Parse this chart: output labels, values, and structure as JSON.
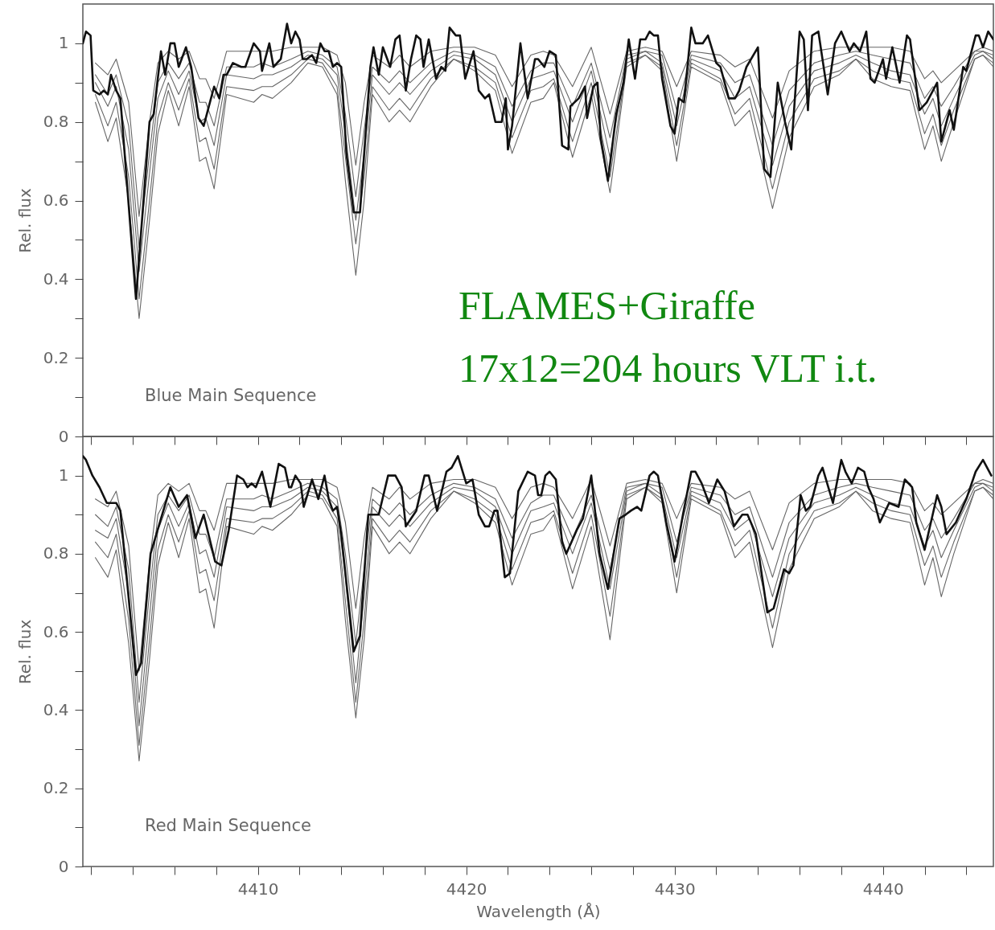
{
  "chart_data": [
    {
      "type": "line",
      "ylabel": "Rel. flux",
      "annotations": [
        "Blue Main Sequence",
        "FLAMES+Giraffe",
        "17x12=204 hours VLT i.t."
      ],
      "tick_labels": "y",
      "xlim": [
        4401.6,
        4445.3
      ],
      "ylim": [
        0,
        1.1
      ],
      "xticks": [
        {
          "value": 4402,
          "label": null
        },
        {
          "value": 4404,
          "label": null
        },
        {
          "value": 4406,
          "label": null
        },
        {
          "value": 4408,
          "label": null
        },
        {
          "value": 4410,
          "label": null
        },
        {
          "value": 4412,
          "label": null
        },
        {
          "value": 4414,
          "label": null
        },
        {
          "value": 4416,
          "label": null
        },
        {
          "value": 4418,
          "label": null
        },
        {
          "value": 4420,
          "label": null
        },
        {
          "value": 4422,
          "label": null
        },
        {
          "value": 4424,
          "label": null
        },
        {
          "value": 4426,
          "label": null
        },
        {
          "value": 4428,
          "label": null
        },
        {
          "value": 4430,
          "label": null
        },
        {
          "value": 4432,
          "label": null
        },
        {
          "value": 4434,
          "label": null
        },
        {
          "value": 4436,
          "label": null
        },
        {
          "value": 4438,
          "label": null
        },
        {
          "value": 4440,
          "label": null
        },
        {
          "value": 4442,
          "label": null
        },
        {
          "value": 4444,
          "label": null
        }
      ],
      "yticks": [
        0,
        {
          "value": 0.1,
          "label": null
        },
        0.2,
        {
          "value": 0.3,
          "label": null
        },
        0.4,
        {
          "value": 0.5,
          "label": null
        },
        0.6,
        {
          "value": 0.7,
          "label": null
        },
        0.8,
        {
          "value": 0.9,
          "label": null
        },
        1
      ],
      "x": [
        4402.2,
        4402.8,
        4403.2,
        4403.8,
        4404.3,
        4404.8,
        4405.2,
        4405.7,
        4406.2,
        4406.7,
        4407.2,
        4407.5,
        4407.9,
        4408.5,
        4409.8,
        4410.2,
        4410.7,
        4411.6,
        4412.4,
        4413.1,
        4413.8,
        4414.2,
        4414.7,
        4415.1,
        4415.5,
        4416.3,
        4416.8,
        4417.3,
        4418.3,
        4419.4,
        4420.4,
        4421.4,
        4422.2,
        4423.1,
        4423.7,
        4424.2,
        4425.1,
        4426.0,
        4426.9,
        4427.7,
        4428.6,
        4429.4,
        4430.1,
        4430.8,
        4432.2,
        4432.9,
        4433.6,
        4434.7,
        4435.5,
        4436.7,
        4437.9,
        4438.7,
        4439.5,
        4440.4,
        4441.3,
        4442.0,
        4442.4,
        4442.8,
        4443.4,
        4444.4,
        4444.8,
        4445.3
      ],
      "series": [
        {
          "color": "#666666",
          "values": [
            0.95,
            0.92,
            0.96,
            0.85,
            0.56,
            0.8,
            0.95,
            0.98,
            0.96,
            0.98,
            0.91,
            0.91,
            0.86,
            0.98,
            0.98,
            0.98,
            0.98,
            0.99,
            0.99,
            0.99,
            0.97,
            0.9,
            0.69,
            0.85,
            0.97,
            0.94,
            0.97,
            0.94,
            0.98,
            0.99,
            0.99,
            0.97,
            0.89,
            0.97,
            0.98,
            0.97,
            0.89,
            0.99,
            0.82,
            0.98,
            0.99,
            0.98,
            0.89,
            0.98,
            0.97,
            0.94,
            0.96,
            0.81,
            0.93,
            0.98,
            0.99,
            0.99,
            0.99,
            0.99,
            0.98,
            0.91,
            0.93,
            0.9,
            0.93,
            0.98,
            0.99,
            0.98
          ]
        },
        {
          "color": "#666666",
          "values": [
            0.92,
            0.87,
            0.92,
            0.79,
            0.48,
            0.72,
            0.9,
            0.95,
            0.91,
            0.95,
            0.85,
            0.85,
            0.79,
            0.94,
            0.94,
            0.95,
            0.94,
            0.96,
            0.98,
            0.97,
            0.94,
            0.82,
            0.61,
            0.78,
            0.94,
            0.9,
            0.93,
            0.9,
            0.95,
            0.98,
            0.97,
            0.94,
            0.84,
            0.93,
            0.95,
            0.95,
            0.84,
            0.95,
            0.76,
            0.97,
            0.98,
            0.97,
            0.83,
            0.97,
            0.95,
            0.9,
            0.92,
            0.74,
            0.88,
            0.95,
            0.97,
            0.98,
            0.97,
            0.96,
            0.95,
            0.86,
            0.89,
            0.84,
            0.89,
            0.98,
            0.98,
            0.97
          ]
        },
        {
          "color": "#666666",
          "values": [
            0.9,
            0.84,
            0.89,
            0.73,
            0.42,
            0.67,
            0.86,
            0.93,
            0.87,
            0.93,
            0.8,
            0.81,
            0.74,
            0.92,
            0.91,
            0.92,
            0.92,
            0.94,
            0.97,
            0.96,
            0.92,
            0.77,
            0.55,
            0.72,
            0.92,
            0.87,
            0.9,
            0.87,
            0.93,
            0.97,
            0.96,
            0.92,
            0.8,
            0.91,
            0.92,
            0.93,
            0.8,
            0.93,
            0.71,
            0.96,
            0.98,
            0.95,
            0.79,
            0.96,
            0.93,
            0.86,
            0.89,
            0.69,
            0.84,
            0.93,
            0.95,
            0.97,
            0.95,
            0.93,
            0.92,
            0.82,
            0.86,
            0.79,
            0.86,
            0.97,
            0.98,
            0.96
          ]
        },
        {
          "color": "#666666",
          "values": [
            0.87,
            0.79,
            0.85,
            0.66,
            0.35,
            0.6,
            0.81,
            0.9,
            0.83,
            0.91,
            0.75,
            0.76,
            0.68,
            0.89,
            0.88,
            0.89,
            0.89,
            0.92,
            0.96,
            0.95,
            0.89,
            0.71,
            0.49,
            0.66,
            0.89,
            0.83,
            0.86,
            0.83,
            0.91,
            0.96,
            0.94,
            0.9,
            0.76,
            0.88,
            0.89,
            0.91,
            0.75,
            0.9,
            0.66,
            0.95,
            0.97,
            0.94,
            0.74,
            0.95,
            0.91,
            0.82,
            0.86,
            0.63,
            0.8,
            0.91,
            0.93,
            0.96,
            0.93,
            0.91,
            0.9,
            0.77,
            0.82,
            0.74,
            0.83,
            0.96,
            0.97,
            0.95
          ]
        },
        {
          "color": "#666666",
          "values": [
            0.85,
            0.75,
            0.81,
            0.6,
            0.3,
            0.55,
            0.77,
            0.88,
            0.79,
            0.89,
            0.7,
            0.71,
            0.63,
            0.87,
            0.85,
            0.87,
            0.86,
            0.9,
            0.95,
            0.94,
            0.87,
            0.65,
            0.41,
            0.6,
            0.87,
            0.8,
            0.83,
            0.8,
            0.89,
            0.96,
            0.93,
            0.88,
            0.72,
            0.85,
            0.86,
            0.9,
            0.71,
            0.87,
            0.62,
            0.94,
            0.97,
            0.93,
            0.7,
            0.94,
            0.9,
            0.79,
            0.83,
            0.58,
            0.76,
            0.89,
            0.92,
            0.96,
            0.91,
            0.89,
            0.88,
            0.73,
            0.79,
            0.7,
            0.8,
            0.96,
            0.97,
            0.94
          ]
        },
        {
          "color": "#111111",
          "x": [
            4401.6,
            4401.75,
            4401.97,
            4402.1,
            4402.4,
            4402.6,
            4402.8,
            4402.95,
            4403.2,
            4403.4,
            4404.15,
            4404.8,
            4405.0,
            4405.35,
            4405.55,
            4405.8,
            4406.0,
            4406.2,
            4406.55,
            4406.8,
            4407.15,
            4407.4,
            4407.65,
            4407.9,
            4408.15,
            4408.35,
            4408.5,
            4408.8,
            4409.2,
            4409.4,
            4409.8,
            4410.1,
            4410.2,
            4410.55,
            4410.75,
            4411.1,
            4411.4,
            4411.6,
            4411.8,
            4412.0,
            4412.15,
            4412.35,
            4412.6,
            4412.8,
            4413.0,
            4413.2,
            4413.4,
            4413.6,
            4413.8,
            4414.0,
            4414.25,
            4414.6,
            4414.9,
            4415.4,
            4415.55,
            4415.8,
            4416.0,
            4416.35,
            4416.6,
            4416.8,
            4417.1,
            4417.35,
            4417.6,
            4417.8,
            4417.95,
            4418.2,
            4418.55,
            4418.8,
            4419.0,
            4419.2,
            4419.5,
            4419.7,
            4419.95,
            4420.35,
            4420.6,
            4420.9,
            4421.1,
            4421.4,
            4421.7,
            4421.9,
            4422.0,
            4422.2,
            4422.6,
            4422.95,
            4423.3,
            4423.45,
            4423.75,
            4424.0,
            4424.3,
            4424.6,
            4424.9,
            4425.0,
            4425.4,
            4425.7,
            4425.8,
            4426.1,
            4426.3,
            4426.45,
            4426.8,
            4427.2,
            4427.55,
            4427.8,
            4428.1,
            4428.35,
            4428.6,
            4428.8,
            4429.0,
            4429.2,
            4429.4,
            4429.8,
            4430.0,
            4430.2,
            4430.45,
            4430.8,
            4431.0,
            4431.35,
            4431.6,
            4432.0,
            4432.2,
            4432.6,
            4432.9,
            4433.1,
            4433.45,
            4434.0,
            4434.3,
            4434.6,
            4434.95,
            4435.3,
            4435.6,
            4436.0,
            4436.2,
            4436.4,
            4436.6,
            4436.9,
            4437.35,
            4437.7,
            4438.0,
            4438.4,
            4438.6,
            4438.9,
            4439.2,
            4439.4,
            4439.6,
            4440.0,
            4440.15,
            4440.45,
            4440.8,
            4441.15,
            4441.3,
            4441.75,
            4442.1,
            4442.6,
            4442.8,
            4443.2,
            4443.4,
            4443.85,
            4444.0,
            4444.45,
            4444.6,
            4444.8,
            4445.05,
            4445.3
          ],
          "values": [
            1.0,
            1.03,
            1.02,
            0.88,
            0.87,
            0.88,
            0.87,
            0.92,
            0.88,
            0.86,
            0.35,
            0.8,
            0.82,
            0.98,
            0.92,
            1.0,
            1.0,
            0.94,
            0.99,
            0.94,
            0.81,
            0.79,
            0.84,
            0.89,
            0.86,
            0.92,
            0.92,
            0.95,
            0.94,
            0.94,
            1.0,
            0.98,
            0.93,
            1.0,
            0.94,
            0.96,
            1.05,
            1.0,
            1.03,
            1.01,
            0.96,
            0.96,
            0.97,
            0.95,
            1.0,
            0.98,
            0.98,
            0.94,
            0.95,
            0.94,
            0.72,
            0.57,
            0.57,
            0.94,
            0.99,
            0.92,
            0.99,
            0.94,
            1.01,
            1.02,
            0.88,
            0.96,
            1.02,
            1.01,
            0.94,
            1.01,
            0.91,
            0.94,
            0.93,
            1.04,
            1.02,
            1.02,
            0.91,
            0.98,
            0.88,
            0.86,
            0.87,
            0.8,
            0.8,
            0.86,
            0.73,
            0.79,
            1.0,
            0.86,
            0.96,
            0.96,
            0.94,
            0.98,
            0.97,
            0.74,
            0.73,
            0.84,
            0.86,
            0.89,
            0.81,
            0.89,
            0.9,
            0.76,
            0.65,
            0.82,
            0.9,
            1.01,
            0.91,
            1.01,
            1.01,
            1.03,
            1.02,
            1.02,
            0.91,
            0.79,
            0.77,
            0.86,
            0.85,
            1.04,
            1.0,
            1.0,
            1.02,
            0.95,
            0.94,
            0.86,
            0.86,
            0.88,
            0.94,
            0.99,
            0.68,
            0.66,
            0.9,
            0.8,
            0.73,
            1.03,
            1.01,
            0.83,
            1.02,
            1.03,
            0.87,
            1.0,
            1.03,
            0.98,
            1.0,
            0.98,
            1.03,
            0.91,
            0.9,
            0.96,
            0.91,
            0.99,
            0.9,
            1.02,
            1.01,
            0.83,
            0.85,
            0.9,
            0.75,
            0.83,
            0.78,
            0.94,
            0.93,
            1.02,
            1.02,
            0.99,
            1.03,
            1.01
          ]
        }
      ]
    },
    {
      "type": "line",
      "ylabel": "Rel. flux",
      "xlabel": "Wavelength (Å)",
      "annotations": [
        "Red Main Sequence"
      ],
      "xlim": [
        4401.6,
        4445.3
      ],
      "ylim": [
        0,
        1.1
      ],
      "xticks": [
        {
          "value": 4402,
          "label": null
        },
        {
          "value": 4404,
          "label": null
        },
        {
          "value": 4406,
          "label": null
        },
        {
          "value": 4408,
          "label": null
        },
        4410,
        {
          "value": 4412,
          "label": null
        },
        {
          "value": 4414,
          "label": null
        },
        {
          "value": 4416,
          "label": null
        },
        {
          "value": 4418,
          "label": null
        },
        4420,
        {
          "value": 4422,
          "label": null
        },
        {
          "value": 4424,
          "label": null
        },
        {
          "value": 4426,
          "label": null
        },
        {
          "value": 4428,
          "label": null
        },
        4430,
        {
          "value": 4432,
          "label": null
        },
        {
          "value": 4434,
          "label": null
        },
        {
          "value": 4436,
          "label": null
        },
        {
          "value": 4438,
          "label": null
        },
        4440,
        {
          "value": 4442,
          "label": null
        },
        {
          "value": 4444,
          "label": null
        }
      ],
      "yticks": [
        0,
        {
          "value": 0.1,
          "label": null
        },
        0.2,
        {
          "value": 0.3,
          "label": null
        },
        0.4,
        {
          "value": 0.5,
          "label": null
        },
        0.6,
        {
          "value": 0.7,
          "label": null
        },
        0.8,
        {
          "value": 0.9,
          "label": null
        },
        1
      ],
      "x": [
        4402.2,
        4402.8,
        4403.2,
        4403.8,
        4404.3,
        4404.8,
        4405.2,
        4405.7,
        4406.2,
        4406.7,
        4407.2,
        4407.5,
        4407.9,
        4408.5,
        4409.8,
        4410.2,
        4410.7,
        4411.6,
        4412.4,
        4413.1,
        4413.8,
        4414.2,
        4414.7,
        4415.1,
        4415.5,
        4416.3,
        4416.8,
        4417.3,
        4418.3,
        4419.4,
        4420.4,
        4421.4,
        4422.2,
        4423.1,
        4423.7,
        4424.2,
        4425.1,
        4426.0,
        4426.9,
        4427.7,
        4428.6,
        4429.4,
        4430.1,
        4430.8,
        4432.2,
        4432.9,
        4433.6,
        4434.7,
        4435.5,
        4436.7,
        4437.9,
        4438.7,
        4439.5,
        4440.4,
        4441.3,
        4442.0,
        4442.4,
        4442.8,
        4443.4,
        4444.4,
        4444.8,
        4445.3
      ],
      "series": [
        {
          "color": "#666666",
          "values": [
            0.94,
            0.92,
            0.96,
            0.82,
            0.5,
            0.78,
            0.95,
            0.98,
            0.96,
            0.98,
            0.91,
            0.91,
            0.86,
            0.98,
            0.98,
            0.98,
            0.98,
            0.99,
            0.99,
            0.99,
            0.97,
            0.88,
            0.66,
            0.84,
            0.97,
            0.94,
            0.97,
            0.94,
            0.98,
            0.99,
            0.99,
            0.97,
            0.89,
            0.97,
            0.98,
            0.97,
            0.89,
            0.99,
            0.82,
            0.98,
            0.99,
            0.98,
            0.89,
            0.98,
            0.97,
            0.94,
            0.96,
            0.81,
            0.93,
            0.98,
            0.99,
            0.99,
            0.99,
            0.99,
            0.98,
            0.91,
            0.93,
            0.9,
            0.93,
            0.98,
            0.99,
            0.98
          ]
        },
        {
          "color": "#666666",
          "values": [
            0.9,
            0.87,
            0.92,
            0.76,
            0.42,
            0.7,
            0.9,
            0.95,
            0.91,
            0.95,
            0.85,
            0.85,
            0.79,
            0.94,
            0.94,
            0.95,
            0.94,
            0.96,
            0.98,
            0.97,
            0.94,
            0.8,
            0.57,
            0.76,
            0.94,
            0.9,
            0.93,
            0.9,
            0.95,
            0.98,
            0.97,
            0.94,
            0.84,
            0.93,
            0.95,
            0.95,
            0.84,
            0.95,
            0.76,
            0.97,
            0.98,
            0.97,
            0.83,
            0.97,
            0.95,
            0.9,
            0.92,
            0.74,
            0.88,
            0.95,
            0.97,
            0.98,
            0.97,
            0.96,
            0.95,
            0.86,
            0.89,
            0.84,
            0.89,
            0.98,
            0.98,
            0.97
          ]
        },
        {
          "color": "#666666",
          "values": [
            0.86,
            0.84,
            0.89,
            0.7,
            0.36,
            0.64,
            0.86,
            0.93,
            0.87,
            0.93,
            0.8,
            0.81,
            0.74,
            0.92,
            0.91,
            0.92,
            0.92,
            0.94,
            0.97,
            0.96,
            0.92,
            0.74,
            0.47,
            0.69,
            0.92,
            0.87,
            0.9,
            0.87,
            0.93,
            0.97,
            0.96,
            0.92,
            0.8,
            0.91,
            0.92,
            0.93,
            0.8,
            0.93,
            0.71,
            0.96,
            0.98,
            0.95,
            0.79,
            0.96,
            0.93,
            0.86,
            0.89,
            0.69,
            0.84,
            0.93,
            0.95,
            0.97,
            0.95,
            0.93,
            0.92,
            0.82,
            0.86,
            0.79,
            0.86,
            0.97,
            0.98,
            0.96
          ]
        },
        {
          "color": "#666666",
          "values": [
            0.83,
            0.79,
            0.85,
            0.63,
            0.31,
            0.58,
            0.81,
            0.9,
            0.83,
            0.91,
            0.75,
            0.76,
            0.68,
            0.89,
            0.88,
            0.89,
            0.89,
            0.92,
            0.96,
            0.95,
            0.89,
            0.68,
            0.42,
            0.63,
            0.89,
            0.83,
            0.86,
            0.83,
            0.91,
            0.96,
            0.94,
            0.9,
            0.76,
            0.88,
            0.89,
            0.91,
            0.75,
            0.9,
            0.64,
            0.95,
            0.97,
            0.94,
            0.74,
            0.95,
            0.91,
            0.82,
            0.86,
            0.61,
            0.8,
            0.91,
            0.93,
            0.96,
            0.93,
            0.91,
            0.9,
            0.77,
            0.82,
            0.74,
            0.83,
            0.96,
            0.97,
            0.95
          ]
        },
        {
          "color": "#666666",
          "values": [
            0.79,
            0.74,
            0.81,
            0.57,
            0.27,
            0.53,
            0.77,
            0.88,
            0.79,
            0.89,
            0.7,
            0.71,
            0.61,
            0.87,
            0.85,
            0.87,
            0.86,
            0.9,
            0.95,
            0.94,
            0.87,
            0.63,
            0.38,
            0.58,
            0.87,
            0.8,
            0.83,
            0.8,
            0.89,
            0.96,
            0.93,
            0.88,
            0.72,
            0.85,
            0.86,
            0.9,
            0.71,
            0.87,
            0.58,
            0.94,
            0.97,
            0.93,
            0.7,
            0.94,
            0.9,
            0.79,
            0.83,
            0.56,
            0.76,
            0.89,
            0.92,
            0.96,
            0.91,
            0.89,
            0.88,
            0.72,
            0.79,
            0.69,
            0.8,
            0.96,
            0.97,
            0.94
          ]
        },
        {
          "color": "#111111",
          "x": [
            4401.6,
            4401.75,
            4402.06,
            4402.4,
            4402.75,
            4403.2,
            4403.4,
            4404.15,
            4404.4,
            4404.85,
            4405.35,
            4405.8,
            4406.2,
            4406.6,
            4407.0,
            4407.4,
            4407.95,
            4408.25,
            4408.6,
            4409.0,
            4409.3,
            4409.5,
            4409.7,
            4409.9,
            4410.2,
            4410.6,
            4411.0,
            4411.3,
            4411.5,
            4411.6,
            4411.8,
            4412.05,
            4412.2,
            4412.6,
            4412.9,
            4413.2,
            4413.4,
            4413.6,
            4413.8,
            4414.0,
            4414.6,
            4414.9,
            4415.3,
            4415.8,
            4416.25,
            4416.6,
            4416.9,
            4417.1,
            4417.6,
            4418.0,
            4418.2,
            4418.6,
            4419.05,
            4419.3,
            4419.6,
            4420.0,
            4420.3,
            4420.6,
            4420.9,
            4421.1,
            4421.35,
            4421.5,
            4421.85,
            4422.1,
            4422.5,
            4422.95,
            4423.3,
            4423.45,
            4423.6,
            4423.8,
            4424.0,
            4424.3,
            4424.6,
            4424.8,
            4425.3,
            4425.6,
            4426.0,
            4426.4,
            4426.8,
            4427.35,
            4427.65,
            4427.9,
            4428.2,
            4428.4,
            4428.8,
            4429.0,
            4429.2,
            4429.6,
            4430.0,
            4430.4,
            4430.8,
            4431.0,
            4431.3,
            4431.65,
            4432.05,
            4432.4,
            4432.85,
            4433.25,
            4433.5,
            4433.9,
            4434.45,
            4434.75,
            4435.25,
            4435.5,
            4435.7,
            4436.05,
            4436.3,
            4436.5,
            4436.9,
            4437.1,
            4437.6,
            4438.0,
            4438.2,
            4438.5,
            4438.8,
            4439.1,
            4439.3,
            4439.55,
            4439.85,
            4440.3,
            4440.75,
            4441.05,
            4441.4,
            4441.6,
            4442.0,
            4442.6,
            4442.8,
            4443.05,
            4443.5,
            4444.0,
            4444.45,
            4444.8,
            4445.2
          ],
          "values": [
            1.05,
            1.04,
            1.0,
            0.97,
            0.93,
            0.93,
            0.91,
            0.49,
            0.52,
            0.8,
            0.89,
            0.97,
            0.92,
            0.95,
            0.84,
            0.9,
            0.78,
            0.77,
            0.86,
            1.0,
            0.99,
            0.97,
            0.98,
            0.97,
            1.01,
            0.92,
            1.03,
            1.02,
            0.97,
            0.97,
            1.0,
            0.98,
            0.92,
            0.99,
            0.94,
            1.0,
            0.94,
            0.91,
            0.92,
            0.85,
            0.55,
            0.59,
            0.9,
            0.9,
            1.0,
            1.0,
            0.97,
            0.87,
            0.91,
            1.0,
            1.0,
            0.91,
            1.01,
            1.02,
            1.05,
            0.98,
            0.99,
            0.9,
            0.87,
            0.87,
            0.91,
            0.91,
            0.74,
            0.75,
            0.96,
            1.01,
            1.0,
            0.95,
            0.95,
            1.0,
            1.01,
            0.99,
            0.83,
            0.8,
            0.86,
            0.89,
            1.0,
            0.8,
            0.71,
            0.89,
            0.9,
            0.91,
            0.92,
            0.91,
            1.0,
            1.01,
            1.0,
            0.88,
            0.78,
            0.9,
            1.01,
            1.01,
            0.98,
            0.93,
            0.99,
            0.96,
            0.87,
            0.9,
            0.9,
            0.85,
            0.65,
            0.66,
            0.76,
            0.75,
            0.77,
            0.95,
            0.91,
            0.92,
            1.0,
            1.02,
            0.93,
            1.04,
            1.01,
            0.98,
            1.02,
            1.01,
            0.97,
            0.94,
            0.88,
            0.93,
            0.92,
            0.99,
            0.97,
            0.88,
            0.81,
            0.95,
            0.92,
            0.85,
            0.88,
            0.94,
            1.01,
            1.04,
            1.0
          ]
        }
      ]
    }
  ]
}
